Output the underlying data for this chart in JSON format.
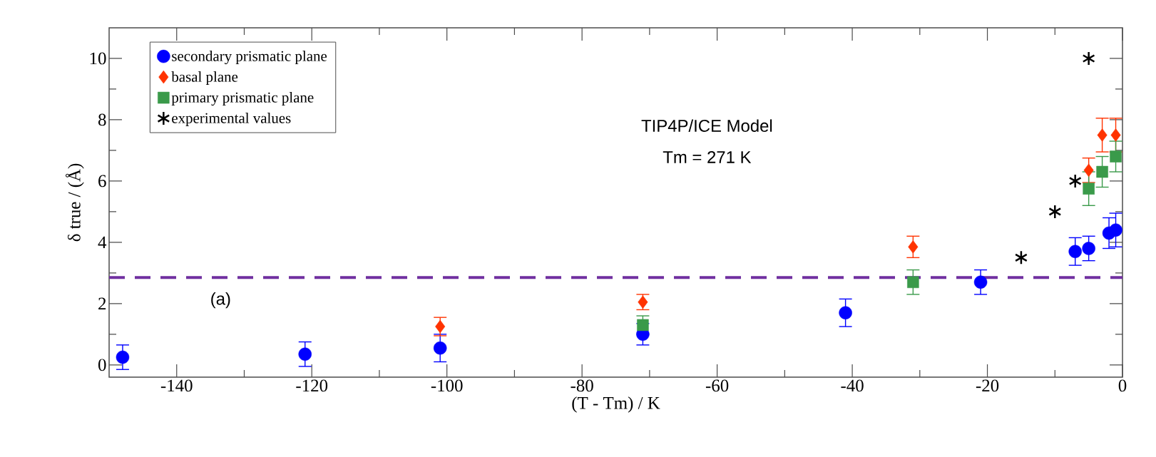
{
  "chart_data": {
    "type": "scatter",
    "xlabel": "(T - Tm) / K",
    "ylabel": "δ true / (Å)",
    "xlim": [
      -150,
      0
    ],
    "ylim": [
      -0.4,
      11
    ],
    "xticks": [
      -140,
      -120,
      -100,
      -80,
      -60,
      -40,
      -20,
      0,
      {
        "value": -130,
        "label": null
      },
      {
        "value": -110,
        "label": null
      },
      {
        "value": -90,
        "label": null
      },
      {
        "value": -70,
        "label": null
      },
      {
        "value": -50,
        "label": null
      },
      {
        "value": -30,
        "label": null
      },
      {
        "value": -10,
        "label": null
      }
    ],
    "yticks": [
      0,
      2,
      4,
      6,
      8,
      10,
      {
        "value": 1,
        "label": null
      },
      {
        "value": 3,
        "label": null
      },
      {
        "value": 5,
        "label": null
      },
      {
        "value": 7,
        "label": null
      },
      {
        "value": 9,
        "label": null
      }
    ],
    "legend": "top left",
    "annotations": [
      "TIP4P/ICE Model",
      "Tm = 271 K",
      "(a)"
    ],
    "ref_lines": [
      {
        "axis": "y",
        "value": 2.85,
        "color": "#7030a0",
        "line_style": "dashed"
      }
    ],
    "series": [
      {
        "name": "secondary prismatic plane",
        "color": "#0000ff",
        "marker": "circle",
        "x": [
          -148,
          -121,
          -101,
          -71,
          -41,
          -21,
          -7,
          -5,
          -2,
          -1
        ],
        "values": [
          0.25,
          0.35,
          0.55,
          1.0,
          1.7,
          2.7,
          3.7,
          3.8,
          4.3,
          4.4
        ],
        "errors": [
          0.4,
          0.4,
          0.45,
          0.35,
          0.45,
          0.4,
          0.45,
          0.4,
          0.5,
          0.55
        ]
      },
      {
        "name": "basal plane",
        "color": "#ff3300",
        "marker": "diamond",
        "x": [
          -101,
          -71,
          -31,
          -5,
          -3,
          -1
        ],
        "values": [
          1.25,
          2.05,
          3.85,
          6.35,
          7.5,
          7.5
        ],
        "errors": [
          0.3,
          0.25,
          0.35,
          0.4,
          0.55,
          0.55
        ]
      },
      {
        "name": "primary prismatic plane",
        "color": "#3a9a4a",
        "marker": "square",
        "x": [
          -71,
          -31,
          -5,
          -3,
          -1
        ],
        "values": [
          1.3,
          2.7,
          5.75,
          6.3,
          6.8
        ],
        "errors": [
          0.3,
          0.4,
          0.55,
          0.5,
          0.5
        ]
      },
      {
        "name": "experimental values",
        "color": "#000000",
        "marker": "cross",
        "x": [
          -15,
          -10,
          -7,
          -5
        ],
        "values": [
          3.5,
          5.0,
          6.0,
          10.0
        ]
      }
    ]
  }
}
